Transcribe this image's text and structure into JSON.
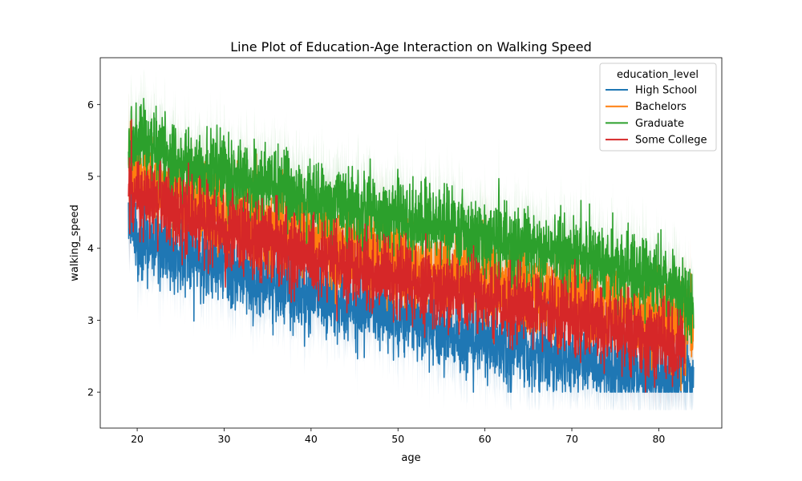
{
  "chart_data": {
    "type": "line",
    "title": "Line Plot of Education-Age Interaction on Walking Speed",
    "xlabel": "age",
    "ylabel": "walking_speed",
    "xlim": [
      15.75,
      87.25
    ],
    "ylim": [
      1.5,
      6.65
    ],
    "xticks": [
      20,
      30,
      40,
      50,
      60,
      70,
      80
    ],
    "yticks": [
      2,
      3,
      4,
      5,
      6
    ],
    "grid": false,
    "legend": {
      "title": "education_level",
      "placement": "top-right"
    },
    "x_range": [
      19,
      84
    ],
    "series": [
      {
        "name": "High School",
        "color": "#1f77b4",
        "trend": [
          [
            19,
            4.55
          ],
          [
            20,
            4.1
          ],
          [
            25,
            3.95
          ],
          [
            30,
            3.75
          ],
          [
            35,
            3.45
          ],
          [
            40,
            3.35
          ],
          [
            45,
            3.2
          ],
          [
            50,
            3.05
          ],
          [
            55,
            2.85
          ],
          [
            60,
            2.7
          ],
          [
            65,
            2.55
          ],
          [
            70,
            2.45
          ],
          [
            75,
            2.35
          ],
          [
            80,
            2.25
          ],
          [
            84,
            2.15
          ]
        ],
        "spread": 0.32,
        "floor": 2.0
      },
      {
        "name": "Bachelors",
        "color": "#ff7f0e",
        "trend": [
          [
            19,
            5.2
          ],
          [
            20,
            5.0
          ],
          [
            25,
            4.7
          ],
          [
            30,
            4.5
          ],
          [
            35,
            4.3
          ],
          [
            40,
            4.15
          ],
          [
            45,
            4.0
          ],
          [
            50,
            3.9
          ],
          [
            55,
            3.7
          ],
          [
            60,
            3.55
          ],
          [
            65,
            3.4
          ],
          [
            70,
            3.3
          ],
          [
            75,
            3.2
          ],
          [
            80,
            3.05
          ],
          [
            84,
            2.9
          ]
        ],
        "spread": 0.35,
        "floor": 2.0
      },
      {
        "name": "Graduate",
        "color": "#2ca02c",
        "trend": [
          [
            19,
            5.3
          ],
          [
            20,
            5.5
          ],
          [
            25,
            5.2
          ],
          [
            30,
            5.0
          ],
          [
            35,
            4.85
          ],
          [
            40,
            4.7
          ],
          [
            45,
            4.55
          ],
          [
            50,
            4.45
          ],
          [
            55,
            4.3
          ],
          [
            60,
            4.15
          ],
          [
            65,
            4.0
          ],
          [
            70,
            3.9
          ],
          [
            75,
            3.75
          ],
          [
            80,
            3.6
          ],
          [
            84,
            3.2
          ]
        ],
        "spread": 0.33,
        "floor": 2.0
      },
      {
        "name": "Some College",
        "color": "#d62728",
        "trend": [
          [
            19,
            4.7
          ],
          [
            20,
            4.75
          ],
          [
            25,
            4.5
          ],
          [
            30,
            4.25
          ],
          [
            35,
            4.1
          ],
          [
            40,
            3.9
          ],
          [
            45,
            3.75
          ],
          [
            50,
            3.6
          ],
          [
            55,
            3.45
          ],
          [
            60,
            3.3
          ],
          [
            65,
            3.15
          ],
          [
            70,
            3.0
          ],
          [
            75,
            2.85
          ],
          [
            80,
            2.7
          ],
          [
            83,
            2.6
          ]
        ],
        "spread": 0.33,
        "floor": 2.0
      }
    ]
  }
}
